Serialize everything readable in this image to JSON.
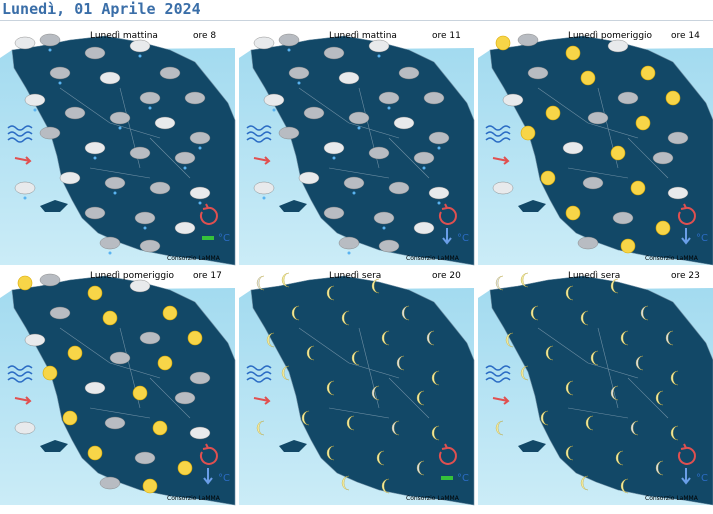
{
  "header": {
    "title": "Lunedì, 01 Aprile 2024"
  },
  "panels": [
    {
      "period": "Lunedì mattina",
      "time": "ore 8",
      "credit": "Consorzio LaMMA",
      "temp_unit": "°C"
    },
    {
      "period": "Lunedì mattina",
      "time": "ore 11",
      "credit": "Consorzio LaMMA",
      "temp_unit": "°C"
    },
    {
      "period": "Lunedì pomeriggio",
      "time": "ore 14",
      "credit": "Consorzio LaMMA",
      "temp_unit": "°C"
    },
    {
      "period": "Lunedì pomeriggio",
      "time": "ore 17",
      "credit": "Consorzio LaMMA",
      "temp_unit": "°C"
    },
    {
      "period": "Lunedì sera",
      "time": "ore 20",
      "credit": "Consorzio LaMMA",
      "temp_unit": "°C"
    },
    {
      "period": "Lunedì sera",
      "time": "ore 23",
      "credit": "Consorzio LaMMA",
      "temp_unit": "°C"
    }
  ]
}
